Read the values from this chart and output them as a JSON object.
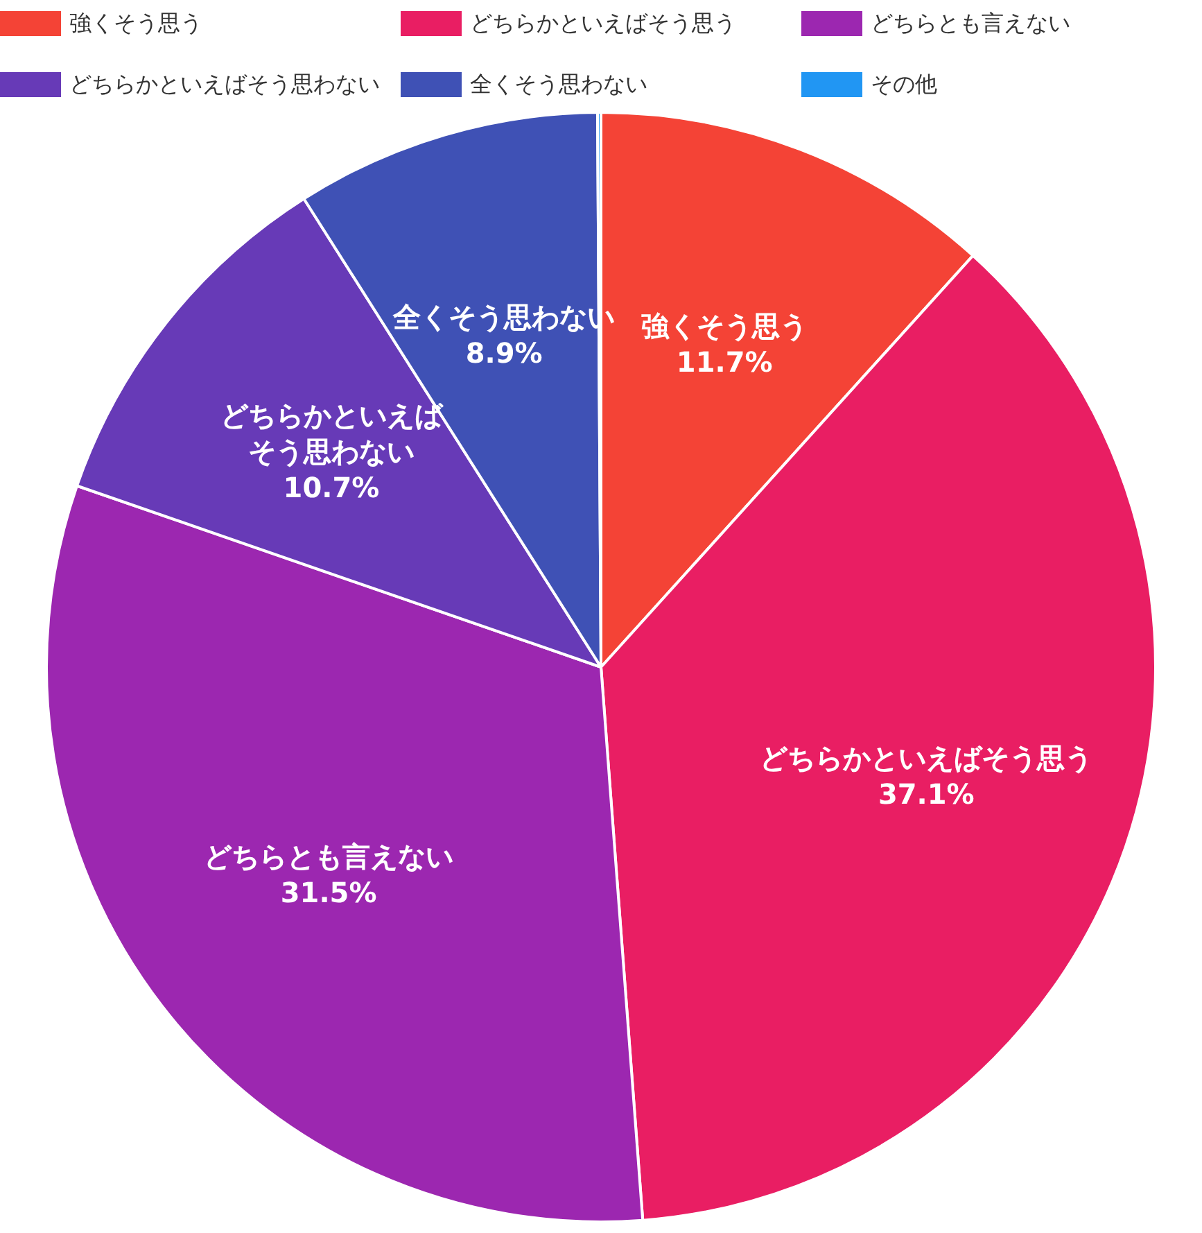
{
  "chart_data": {
    "type": "pie",
    "categories": [
      "強くそう思う",
      "どちらかといえばそう思う",
      "どちらとも言えない",
      "どちらかといえばそう思わない",
      "全くそう思わない",
      "その他"
    ],
    "values": [
      11.7,
      37.1,
      31.5,
      10.7,
      8.9,
      0.1
    ],
    "colors": [
      "#f44336",
      "#e91e63",
      "#9c27b0",
      "#673ab7",
      "#3f51b5",
      "#2196f3"
    ],
    "value_labels": [
      "11.7%",
      "37.1%",
      "31.5%",
      "10.7%",
      "8.9%",
      null
    ],
    "legend": "top"
  }
}
